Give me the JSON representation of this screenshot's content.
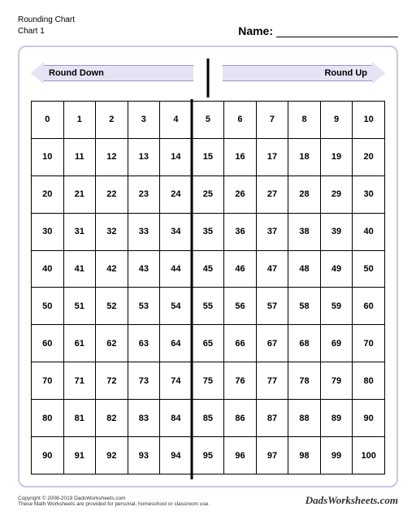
{
  "header": {
    "title_line1": "Rounding Chart",
    "title_line2": "Chart 1",
    "name_label": "Name:"
  },
  "arrows": {
    "left_label": "Round Down",
    "right_label": "Round Up",
    "fill_color": "#e4e4f5",
    "stroke_color": "#9898c8"
  },
  "grid": {
    "rows": [
      [
        0,
        1,
        2,
        3,
        4,
        5,
        6,
        7,
        8,
        9,
        10
      ],
      [
        10,
        11,
        12,
        13,
        14,
        15,
        16,
        17,
        18,
        19,
        20
      ],
      [
        20,
        21,
        22,
        23,
        24,
        25,
        26,
        27,
        28,
        29,
        30
      ],
      [
        30,
        31,
        32,
        33,
        34,
        35,
        36,
        37,
        38,
        39,
        40
      ],
      [
        40,
        41,
        42,
        43,
        44,
        45,
        46,
        47,
        48,
        49,
        50
      ],
      [
        50,
        51,
        52,
        53,
        54,
        55,
        56,
        57,
        58,
        59,
        60
      ],
      [
        60,
        61,
        62,
        63,
        64,
        65,
        66,
        67,
        68,
        69,
        70
      ],
      [
        70,
        71,
        72,
        73,
        74,
        75,
        76,
        77,
        78,
        79,
        80
      ],
      [
        80,
        81,
        82,
        83,
        84,
        85,
        86,
        87,
        88,
        89,
        90
      ],
      [
        90,
        91,
        92,
        93,
        94,
        95,
        96,
        97,
        98,
        99,
        100
      ]
    ],
    "cols": 11,
    "divider_after_col": 5,
    "border_color": "#000000",
    "font_size": 11
  },
  "frame": {
    "border_color": "#c8c8e6",
    "border_radius": 10
  },
  "footer": {
    "copyright": "Copyright © 2008-2019 DadsWorksheets.com",
    "disclaimer": "These Math Worksheets are provided for personal, homeschool or classroom use.",
    "brand": "DadsWorksheets.com"
  }
}
